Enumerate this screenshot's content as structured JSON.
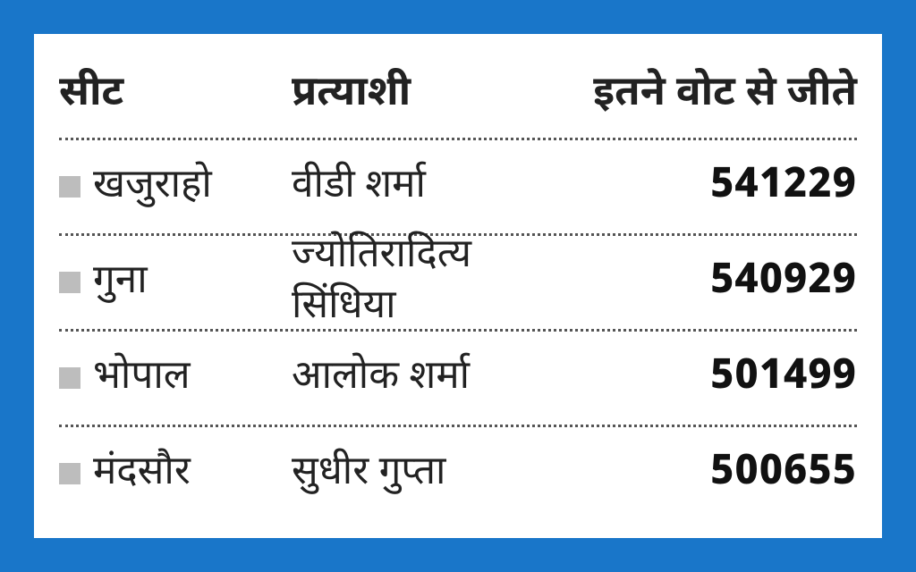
{
  "table": {
    "type": "table",
    "background_color": "#ffffff",
    "outer_bg": "#1976c9",
    "border_color": "#1976c9",
    "divider_color": "#555555",
    "bullet_color": "#bdbdbd",
    "header_fontsize": 46,
    "data_fontsize": 44,
    "votes_fontsize": 46,
    "columns": {
      "seat": "सीट",
      "candidate": "प्रत्याशी",
      "votes": "इतने वोट से जीते"
    },
    "rows": [
      {
        "seat": "खजुराहो",
        "candidate": "वीडी शर्मा",
        "votes": "541229"
      },
      {
        "seat": "गुना",
        "candidate": "ज्योतिरादित्य सिंधिया",
        "votes": "540929"
      },
      {
        "seat": "भोपाल",
        "candidate": "आलोक शर्मा",
        "votes": "501499"
      },
      {
        "seat": "मंदसौर",
        "candidate": "सुधीर गुप्ता",
        "votes": "500655"
      }
    ]
  }
}
